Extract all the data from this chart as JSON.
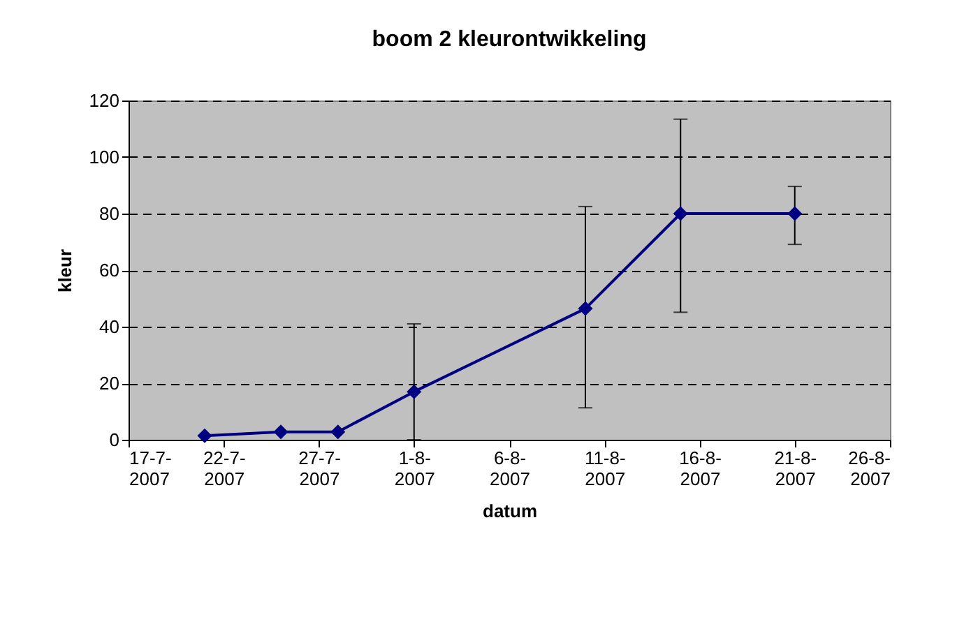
{
  "chart_data": {
    "type": "line",
    "title": "boom 2 kleurontwikkeling",
    "xlabel": "datum",
    "ylabel": "kleur",
    "x": [
      "2007-07-21",
      "2007-07-25",
      "2007-07-28",
      "2007-08-01",
      "2007-08-10",
      "2007-08-15",
      "2007-08-21"
    ],
    "series": [
      {
        "color": "#000080",
        "values": [
          1.4,
          2.8,
          2.8,
          17,
          46.4,
          80,
          80
        ],
        "errors": [
          null,
          null,
          null,
          [
            0,
            41
          ],
          [
            11.3,
            82.5
          ],
          [
            45.1,
            113.4
          ],
          [
            69.1,
            89.6
          ]
        ]
      }
    ],
    "xlim": [
      "2007-07-17",
      "2007-08-26"
    ],
    "xticks": [
      {
        "value": "2007-07-17",
        "label": "17-7-2007"
      },
      {
        "value": "2007-07-22",
        "label": "22-7-2007"
      },
      {
        "value": "2007-07-27",
        "label": "27-7-2007"
      },
      {
        "value": "2007-08-01",
        "label": "1-8-2007"
      },
      {
        "value": "2007-08-06",
        "label": "6-8-2007"
      },
      {
        "value": "2007-08-11",
        "label": "11-8-2007"
      },
      {
        "value": "2007-08-16",
        "label": "16-8-2007"
      },
      {
        "value": "2007-08-21",
        "label": "21-8-2007"
      },
      {
        "value": "2007-08-26",
        "label": "26-8-2007"
      }
    ],
    "ylim": [
      0,
      120
    ],
    "yticks": [
      0,
      20,
      40,
      60,
      80,
      100,
      120
    ],
    "grid": "y",
    "marker": "diamond",
    "line_style": "solid",
    "legend": false
  }
}
